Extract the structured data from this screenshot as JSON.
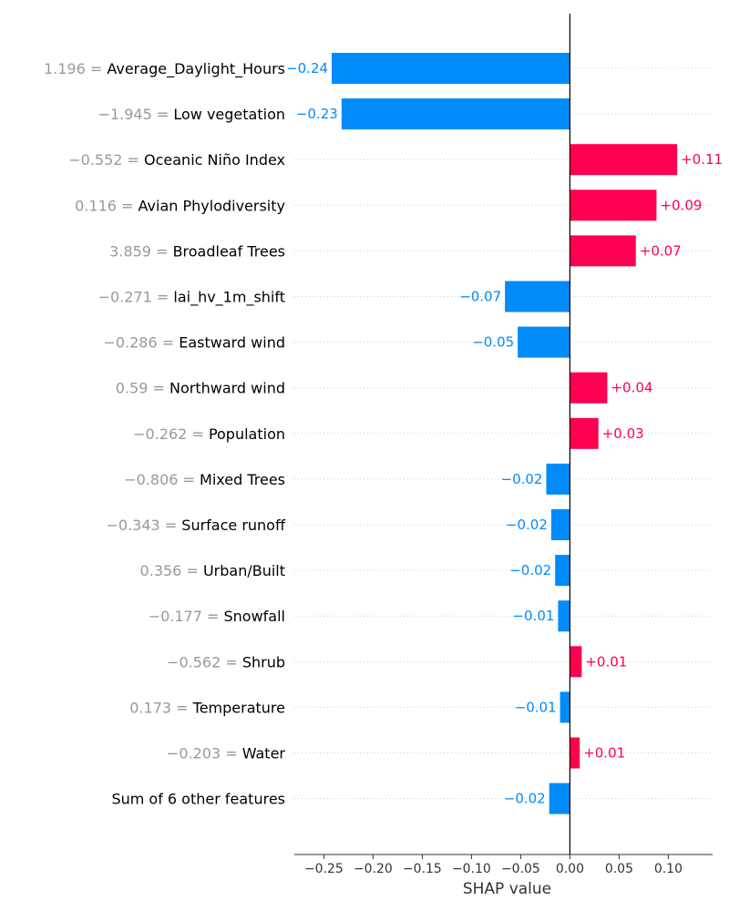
{
  "chart_data": {
    "type": "bar",
    "orientation": "horizontal",
    "xlabel": "SHAP value",
    "xlim": [
      -0.28,
      0.145
    ],
    "xticks": [
      -0.25,
      -0.2,
      -0.15,
      -0.1,
      -0.05,
      0.0,
      0.05,
      0.1
    ],
    "xtick_labels": [
      "−0.25",
      "−0.20",
      "−0.15",
      "−0.10",
      "−0.05",
      "0.00",
      "0.05",
      "0.10"
    ],
    "grid": "horizontal dotted",
    "colors": {
      "positive": "#ff0051",
      "negative": "#008bfb",
      "feature_value": "#999999"
    },
    "features": [
      {
        "value_text": "1.196",
        "name": "Average_Daylight_Hours",
        "shap": -0.242,
        "label": "−0.24"
      },
      {
        "value_text": "−1.945",
        "name": "Low vegetation",
        "shap": -0.232,
        "label": "−0.23"
      },
      {
        "value_text": "−0.552",
        "name": "Oceanic Niño Index",
        "shap": 0.109,
        "label": "+0.11"
      },
      {
        "value_text": "0.116",
        "name": "Avian Phylodiversity",
        "shap": 0.088,
        "label": "+0.09"
      },
      {
        "value_text": "3.859",
        "name": "Broadleaf Trees",
        "shap": 0.067,
        "label": "+0.07"
      },
      {
        "value_text": "−0.271",
        "name": "lai_hv_1m_shift",
        "shap": -0.066,
        "label": "−0.07"
      },
      {
        "value_text": "−0.286",
        "name": "Eastward wind",
        "shap": -0.053,
        "label": "−0.05"
      },
      {
        "value_text": "0.59",
        "name": "Northward wind",
        "shap": 0.038,
        "label": "+0.04"
      },
      {
        "value_text": "−0.262",
        "name": "Population",
        "shap": 0.029,
        "label": "+0.03"
      },
      {
        "value_text": "−0.806",
        "name": "Mixed Trees",
        "shap": -0.024,
        "label": "−0.02"
      },
      {
        "value_text": "−0.343",
        "name": "Surface runoff",
        "shap": -0.019,
        "label": "−0.02"
      },
      {
        "value_text": "0.356",
        "name": "Urban/Built",
        "shap": -0.015,
        "label": "−0.02"
      },
      {
        "value_text": "−0.177",
        "name": "Snowfall",
        "shap": -0.012,
        "label": "−0.01"
      },
      {
        "value_text": "−0.562",
        "name": "Shrub",
        "shap": 0.012,
        "label": "+0.01"
      },
      {
        "value_text": "0.173",
        "name": "Temperature",
        "shap": -0.01,
        "label": "−0.01"
      },
      {
        "value_text": "−0.203",
        "name": "Water",
        "shap": 0.01,
        "label": "+0.01"
      },
      {
        "value_text": "",
        "name": "Sum of 6 other features",
        "shap": -0.021,
        "label": "−0.02"
      }
    ]
  }
}
